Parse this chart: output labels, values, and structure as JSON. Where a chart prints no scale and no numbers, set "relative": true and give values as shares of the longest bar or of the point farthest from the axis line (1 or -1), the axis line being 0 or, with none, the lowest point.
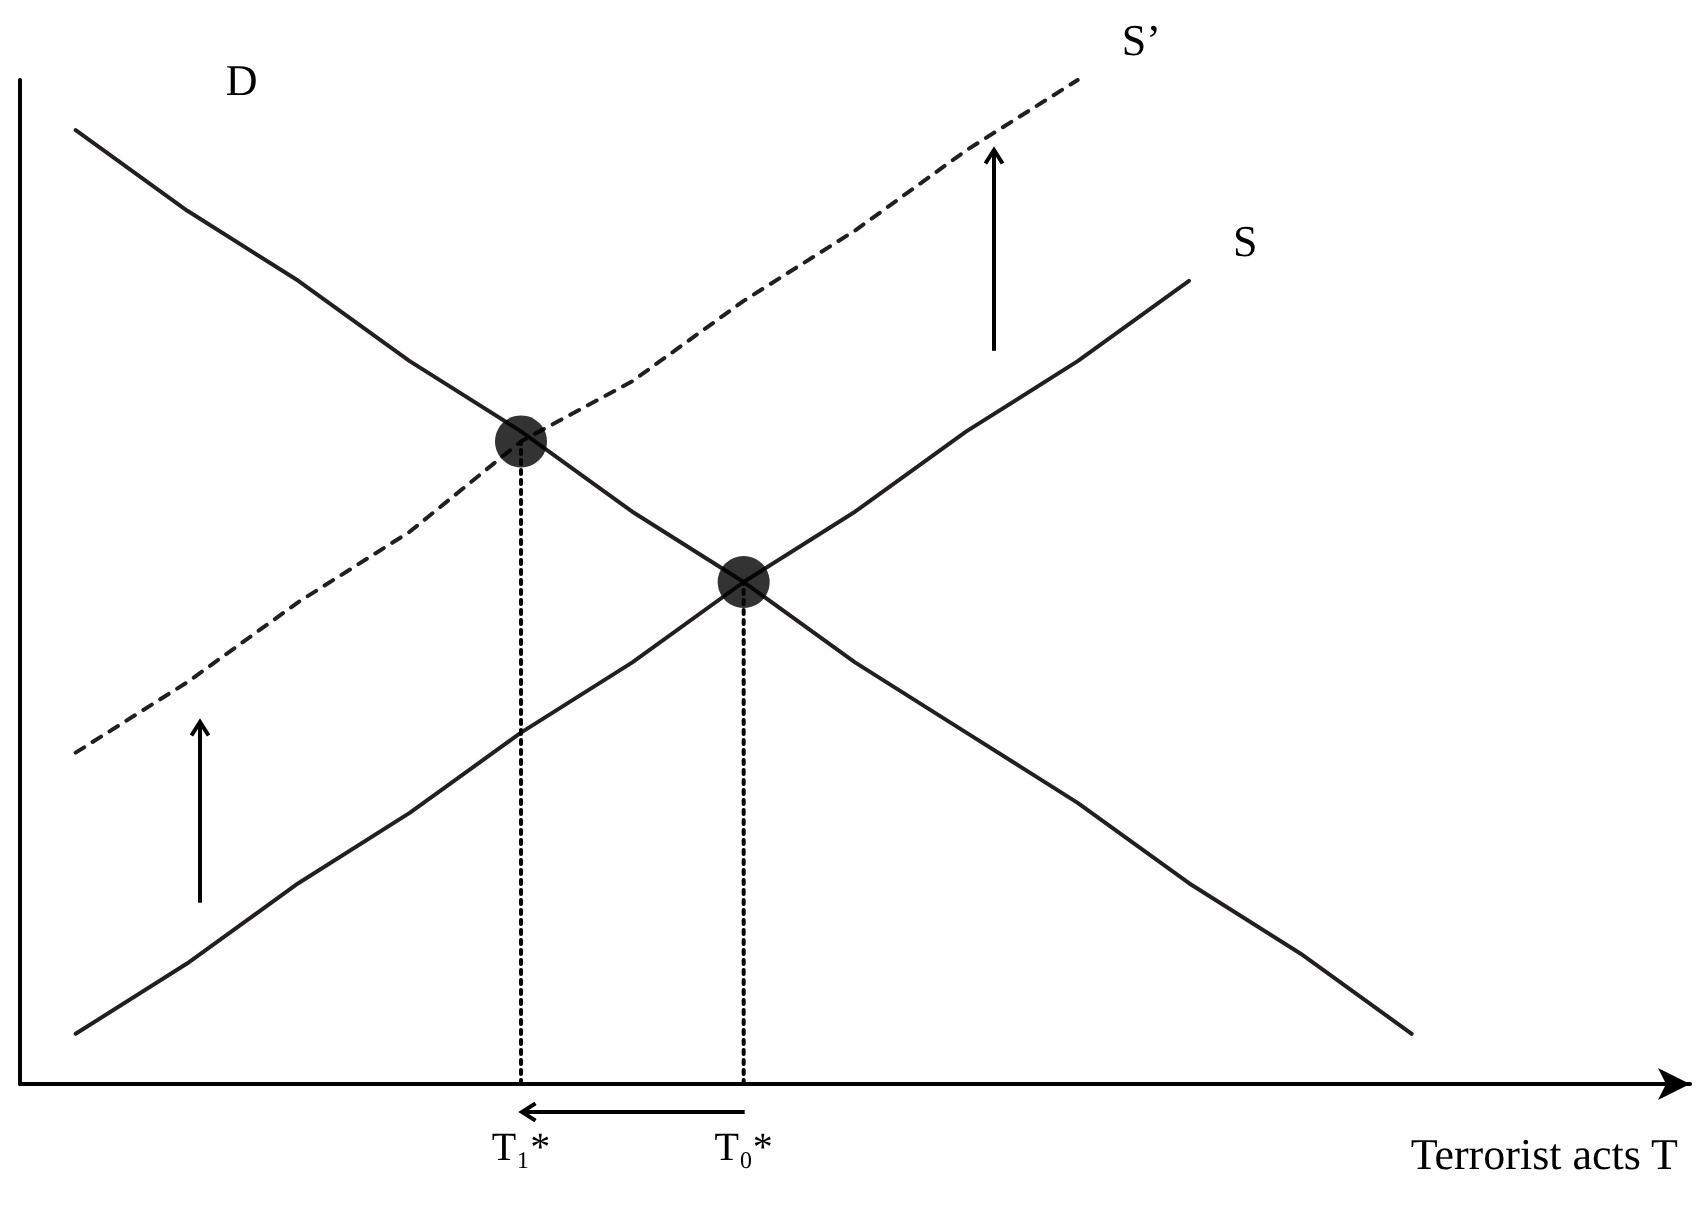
{
  "chart_data": {
    "type": "line",
    "relative": true,
    "xlabel": "Terrorist acts T",
    "legend": false,
    "grid": false,
    "line_style": "solid",
    "categories": [
      null,
      null,
      null,
      null,
      "T₁*",
      null,
      "T₀*",
      null,
      null,
      null,
      null,
      null,
      null,
      null,
      null
    ],
    "series": [
      {
        "name": "D",
        "color": "#231f20",
        "values": [
          0.95,
          0.87,
          0.8,
          0.72,
          0.65,
          0.57,
          0.5,
          0.42,
          0.35,
          0.28,
          0.2,
          0.13,
          0.05,
          null,
          null
        ]
      },
      {
        "name": "S",
        "color": "#231f20",
        "values": [
          0.05,
          0.12,
          0.2,
          0.27,
          0.35,
          0.42,
          0.5,
          0.57,
          0.65,
          0.72,
          0.8,
          null,
          null,
          null,
          null
        ]
      },
      {
        "name": "S’",
        "color": "#231f20",
        "line_style": "dashed",
        "values": [
          0.33,
          0.4,
          0.48,
          0.55,
          0.64,
          0.7,
          0.78,
          0.85,
          0.93,
          1,
          null,
          null,
          null,
          null,
          null
        ]
      },
      {
        "type": "scatter",
        "marker": "circle",
        "color": "#000000",
        "x": [
          "T₁*",
          "T₀*"
        ],
        "values": [
          0.64,
          0.5
        ]
      },
      {
        "color": "#000000",
        "line_style": "dotted",
        "x": [
          "T₁*",
          "T₁*"
        ],
        "values": [
          0,
          0.64
        ]
      },
      {
        "color": "#000000",
        "line_style": "dotted",
        "x": [
          "T₀*",
          "T₀*"
        ],
        "values": [
          0,
          0.5
        ]
      }
    ]
  }
}
